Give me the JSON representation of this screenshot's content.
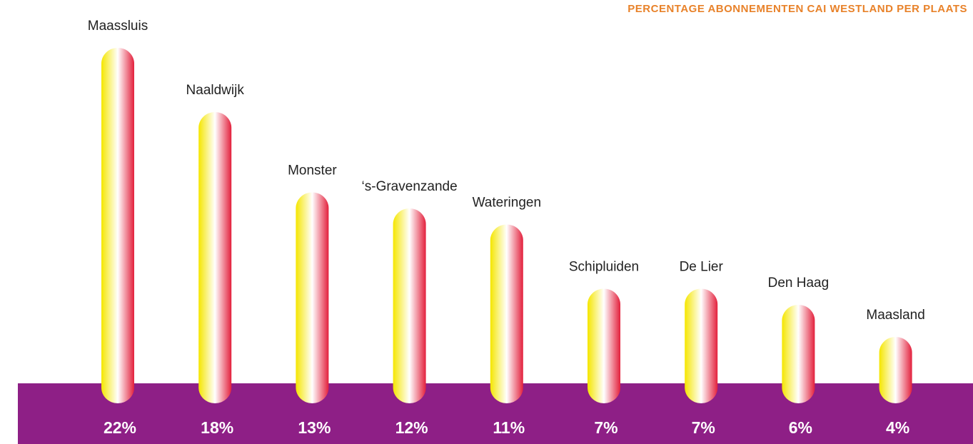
{
  "chart_data": {
    "type": "bar",
    "title": "PERCENTAGE ABONNEMENTEN CAI WESTLAND PER PLAATS",
    "categories": [
      "Maassluis",
      "Naaldwijk",
      "Monster",
      "‘s-Gravenzande",
      "Wateringen",
      "Schipluiden",
      "De Lier",
      "Den Haag",
      "Maasland"
    ],
    "values": [
      22,
      18,
      13,
      12,
      11,
      7,
      7,
      6,
      4
    ],
    "value_labels": [
      "22%",
      "18%",
      "13%",
      "12%",
      "11%",
      "7%",
      "7%",
      "6%",
      "4%"
    ],
    "colors": [
      "#f5e600",
      "#ffffff",
      "#e3203c"
    ],
    "base_color": "#8e1f86",
    "title_color": "#e8822a"
  }
}
